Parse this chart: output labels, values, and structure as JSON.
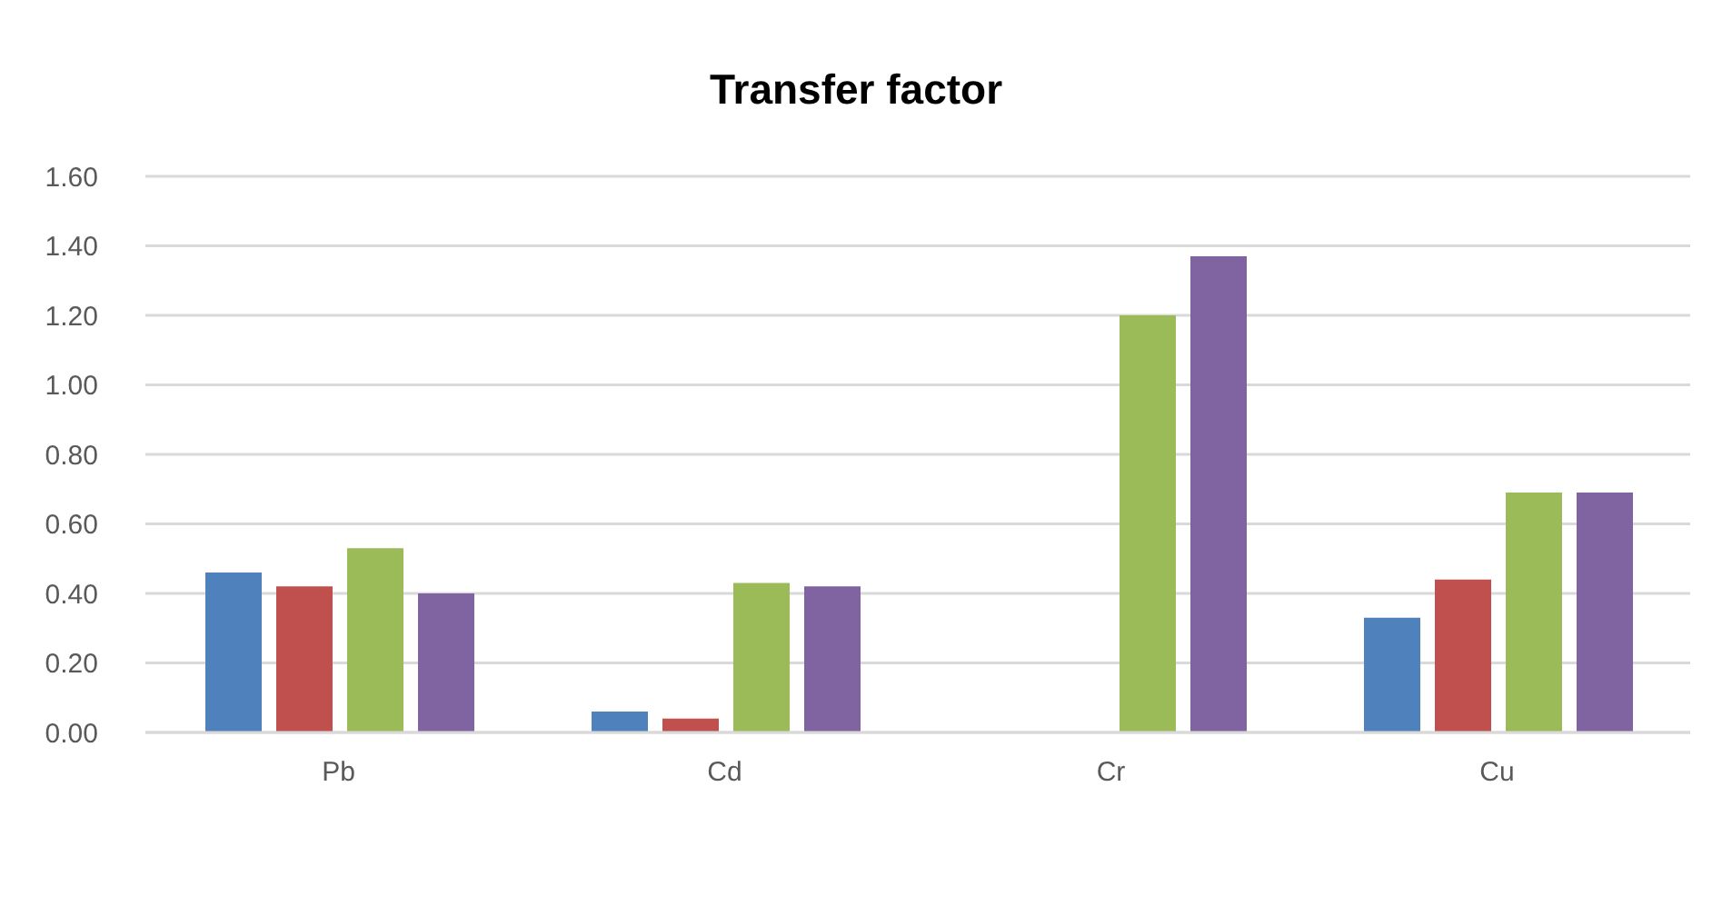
{
  "chart_data": {
    "type": "bar",
    "title": "Transfer factor",
    "categories": [
      "Pb",
      "Cd",
      "Cr",
      "Cu"
    ],
    "series": [
      {
        "color": "#4f81bd",
        "values": [
          0.46,
          0.06,
          0,
          0.33
        ]
      },
      {
        "color": "#c0504d",
        "values": [
          0.42,
          0.04,
          0,
          0.44
        ]
      },
      {
        "color": "#9bbb59",
        "values": [
          0.53,
          0.43,
          1.2,
          0.69
        ]
      },
      {
        "color": "#8064a2",
        "values": [
          0.4,
          0.42,
          1.37,
          0.69
        ]
      }
    ],
    "ylim": [
      0,
      1.6
    ],
    "yticks": [
      {
        "value": 0,
        "label": "0.00"
      },
      {
        "value": 0.2,
        "label": "0.20"
      },
      {
        "value": 0.4,
        "label": "0.40"
      },
      {
        "value": 0.6,
        "label": "0.60"
      },
      {
        "value": 0.8,
        "label": "0.80"
      },
      {
        "value": 1.0,
        "label": "1.00"
      },
      {
        "value": 1.2,
        "label": "1.20"
      },
      {
        "value": 1.4,
        "label": "1.40"
      },
      {
        "value": 1.6,
        "label": "1.60"
      }
    ],
    "grid": "y"
  }
}
